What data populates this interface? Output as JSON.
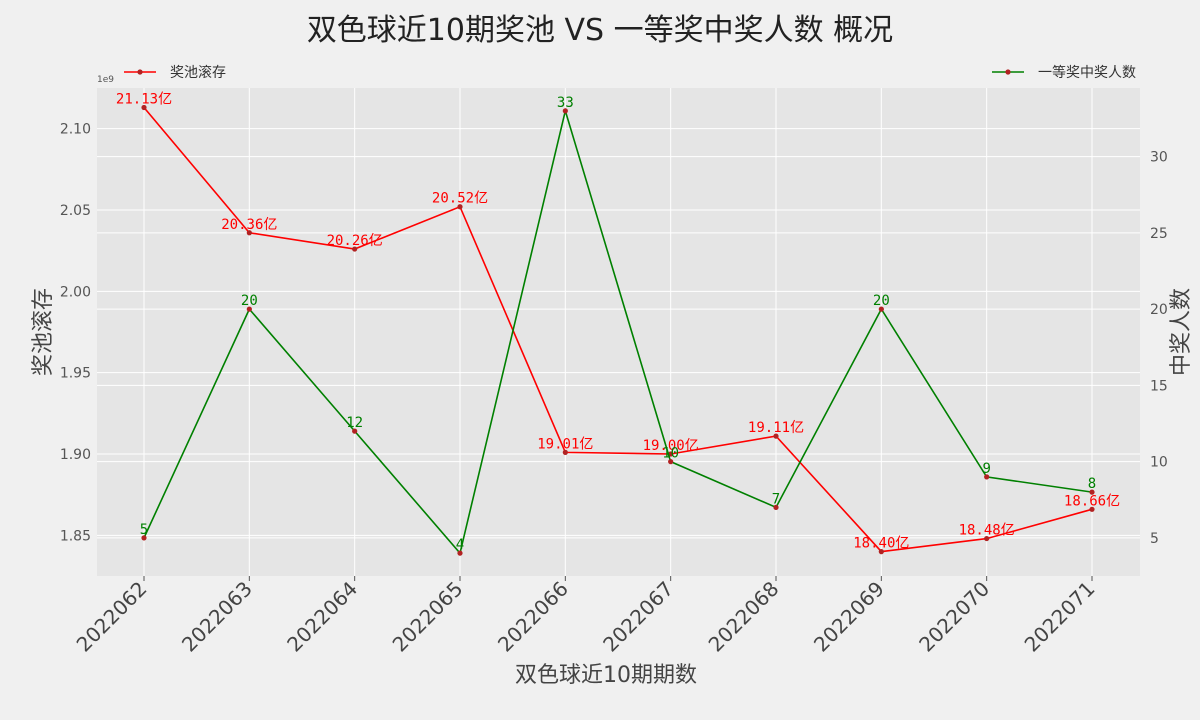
{
  "chart_data": {
    "type": "line",
    "title": "双色球近10期奖池 VS 一等奖中奖人数 概况",
    "xlabel": "双色球近10期期数",
    "ylabel": "奖池滚存",
    "ylabel_right": "中奖人数",
    "y_offset_label": "1e9",
    "categories": [
      "2022062",
      "2022063",
      "2022064",
      "2022065",
      "2022066",
      "2022067",
      "2022068",
      "2022069",
      "2022070",
      "2022071"
    ],
    "ylim": [
      1.825,
      2.125
    ],
    "yticks": [
      1.85,
      1.9,
      1.95,
      2.0,
      2.05,
      2.1
    ],
    "ytick_labels": [
      "1.85",
      "1.90",
      "1.95",
      "2.00",
      "2.05",
      "2.10"
    ],
    "ylim_right": [
      2.5,
      34.5
    ],
    "yticks_right": [
      5,
      10,
      15,
      20,
      25,
      30
    ],
    "ytick_labels_right": [
      "5",
      "10",
      "15",
      "20",
      "25",
      "30"
    ],
    "grid": true,
    "series": [
      {
        "name": "奖池滚存",
        "axis": "left",
        "color": "#ff0000",
        "values": [
          2.113,
          2.036,
          2.026,
          2.052,
          1.901,
          1.9,
          1.911,
          1.84,
          1.848,
          1.866
        ],
        "labels": [
          "21.13亿",
          "20.36亿",
          "20.26亿",
          "20.52亿",
          "19.01亿",
          "19.00亿",
          "19.11亿",
          "18.40亿",
          "18.48亿",
          "18.66亿"
        ],
        "legend": "top-left"
      },
      {
        "name": "一等奖中奖人数",
        "axis": "right",
        "color": "#008000",
        "values": [
          5,
          20,
          12,
          4,
          33,
          10,
          7,
          20,
          9,
          8
        ],
        "labels": [
          "5",
          "20",
          "12",
          "4",
          "33",
          "10",
          "7",
          "20",
          "9",
          "8"
        ],
        "legend": "top-right"
      }
    ],
    "marker_color": "#b22222"
  }
}
